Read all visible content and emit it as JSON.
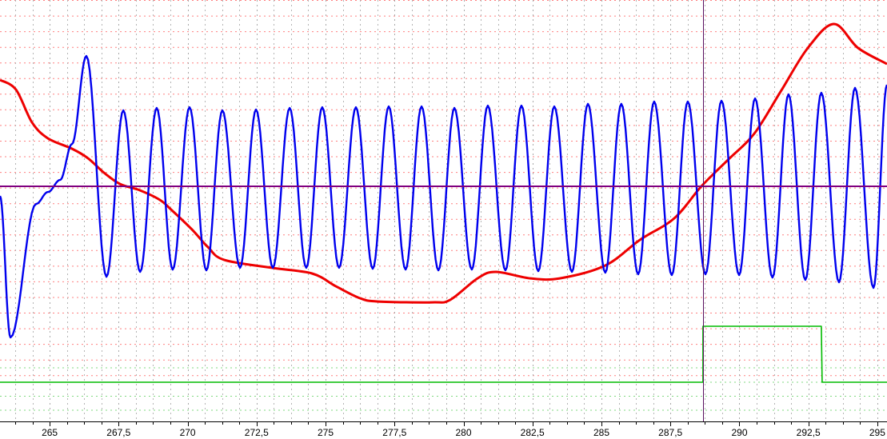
{
  "chart_data": {
    "type": "line",
    "title": "",
    "xlabel": "",
    "ylabel": "",
    "xlim": [
      263.2,
      295.35
    ],
    "ylim": [
      0,
      26.89
    ],
    "grid": true,
    "x_tick_labels": [
      "265",
      "267,5",
      "270",
      "272,5",
      "275",
      "277,5",
      "280",
      "282,5",
      "285",
      "287,5",
      "290",
      "292,5",
      "295"
    ],
    "x_tick_values": [
      265,
      267.5,
      270,
      272.5,
      275,
      277.5,
      280,
      282.5,
      285,
      287.5,
      290,
      292.5,
      295
    ],
    "x_minor_step": 0.625,
    "cursor_x": 288.68,
    "reference_level": 15.0,
    "colors": {
      "blue_series": "#0000ee",
      "red_series": "#ee0000",
      "green_series": "#00bb00",
      "reference": "#800080",
      "cursor": "#5a1060",
      "grid_vertical": "#b4b4b4",
      "grid_horizontal_red": "#ff8080",
      "grid_horizontal_green": "#80d880"
    },
    "series": [
      {
        "id": "blue",
        "smooth_extrema": true,
        "points": [
          [
            263.2,
            14.39
          ],
          [
            263.58,
            5.36
          ],
          [
            264.51,
            13.88
          ],
          [
            264.94,
            14.64
          ],
          [
            265.38,
            15.41
          ],
          [
            265.81,
            17.7
          ],
          [
            266.33,
            23.32
          ],
          [
            267.06,
            9.23
          ],
          [
            267.67,
            19.85
          ],
          [
            268.28,
            9.54
          ],
          [
            268.88,
            20.0
          ],
          [
            269.46,
            9.69
          ],
          [
            270.07,
            20.05
          ],
          [
            270.68,
            9.64
          ],
          [
            271.26,
            19.85
          ],
          [
            271.9,
            9.8
          ],
          [
            272.48,
            19.9
          ],
          [
            273.09,
            9.8
          ],
          [
            273.7,
            20.0
          ],
          [
            274.3,
            9.8
          ],
          [
            274.88,
            20.05
          ],
          [
            275.49,
            9.8
          ],
          [
            276.1,
            20.05
          ],
          [
            276.71,
            9.74
          ],
          [
            277.29,
            20.1
          ],
          [
            277.9,
            9.69
          ],
          [
            278.48,
            20.1
          ],
          [
            279.09,
            9.64
          ],
          [
            279.67,
            20.0
          ],
          [
            280.3,
            9.69
          ],
          [
            280.88,
            20.15
          ],
          [
            281.52,
            9.64
          ],
          [
            282.1,
            20.15
          ],
          [
            282.71,
            9.59
          ],
          [
            283.29,
            20.1
          ],
          [
            283.93,
            9.54
          ],
          [
            284.51,
            20.26
          ],
          [
            285.14,
            9.49
          ],
          [
            285.72,
            20.26
          ],
          [
            286.33,
            9.39
          ],
          [
            286.91,
            20.41
          ],
          [
            287.55,
            9.34
          ],
          [
            288.13,
            20.41
          ],
          [
            288.77,
            9.39
          ],
          [
            289.35,
            20.46
          ],
          [
            289.99,
            9.34
          ],
          [
            290.57,
            20.61
          ],
          [
            291.2,
            9.18
          ],
          [
            291.78,
            20.87
          ],
          [
            292.39,
            9.03
          ],
          [
            292.97,
            20.97
          ],
          [
            293.61,
            8.88
          ],
          [
            294.19,
            21.28
          ],
          [
            294.86,
            8.52
          ],
          [
            295.35,
            21.48
          ]
        ]
      },
      {
        "id": "red",
        "points": [
          [
            263.2,
            21.79
          ],
          [
            263.78,
            21.17
          ],
          [
            264.36,
            19.08
          ],
          [
            264.94,
            18.06
          ],
          [
            265.81,
            17.4
          ],
          [
            266.39,
            16.79
          ],
          [
            266.97,
            15.87
          ],
          [
            267.55,
            15.15
          ],
          [
            268.28,
            14.74
          ],
          [
            269.0,
            14.13
          ],
          [
            269.43,
            13.47
          ],
          [
            270.16,
            12.24
          ],
          [
            270.74,
            11.12
          ],
          [
            271.32,
            10.31
          ],
          [
            273.06,
            9.8
          ],
          [
            274.51,
            9.44
          ],
          [
            275.38,
            8.62
          ],
          [
            276.25,
            7.86
          ],
          [
            276.91,
            7.65
          ],
          [
            278.86,
            7.6
          ],
          [
            279.52,
            7.76
          ],
          [
            280.51,
            9.13
          ],
          [
            281.17,
            9.54
          ],
          [
            282.42,
            9.13
          ],
          [
            283.49,
            9.13
          ],
          [
            285.14,
            9.95
          ],
          [
            286.39,
            11.58
          ],
          [
            287.64,
            12.96
          ],
          [
            288.62,
            15.0
          ],
          [
            289.58,
            16.68
          ],
          [
            290.54,
            18.37
          ],
          [
            291.52,
            21.12
          ],
          [
            292.48,
            23.83
          ],
          [
            293.43,
            25.36
          ],
          [
            294.3,
            23.83
          ],
          [
            295.35,
            22.81
          ]
        ]
      },
      {
        "id": "green",
        "step": true,
        "points": [
          [
            263.2,
            2.5
          ],
          [
            288.68,
            2.5
          ],
          [
            288.68,
            6.07
          ],
          [
            292.97,
            6.07
          ],
          [
            293.0,
            2.5
          ],
          [
            295.35,
            2.5
          ]
        ]
      }
    ]
  }
}
